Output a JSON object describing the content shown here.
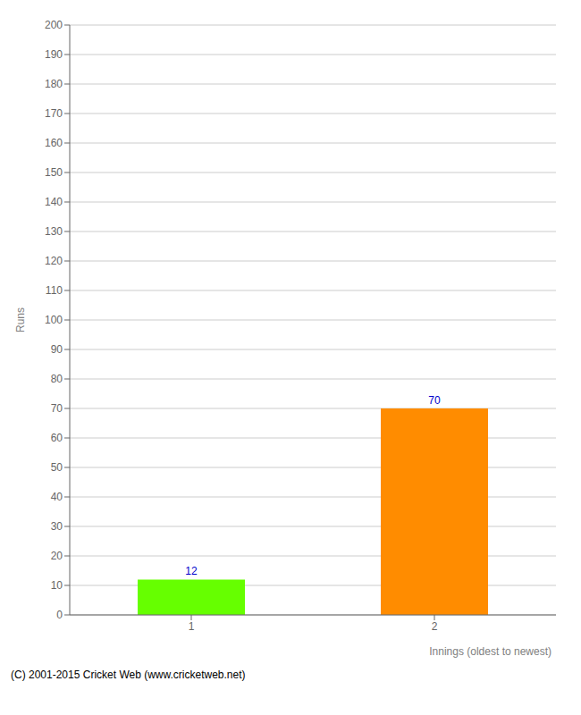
{
  "chart_data": {
    "type": "bar",
    "categories": [
      "1",
      "2"
    ],
    "values": [
      12,
      70
    ],
    "colors": [
      "#66ff00",
      "#ff8c00"
    ],
    "xlabel": "Innings (oldest to newest)",
    "ylabel": "Runs",
    "ylim": [
      0,
      200
    ],
    "yticks": [
      0,
      10,
      20,
      30,
      40,
      50,
      60,
      70,
      80,
      90,
      100,
      110,
      120,
      130,
      140,
      150,
      160,
      170,
      180,
      190,
      200
    ],
    "grid": true,
    "data_labels": true,
    "annotations": [
      "(C) 2001-2015 Cricket Web (www.cricketweb.net)"
    ]
  }
}
